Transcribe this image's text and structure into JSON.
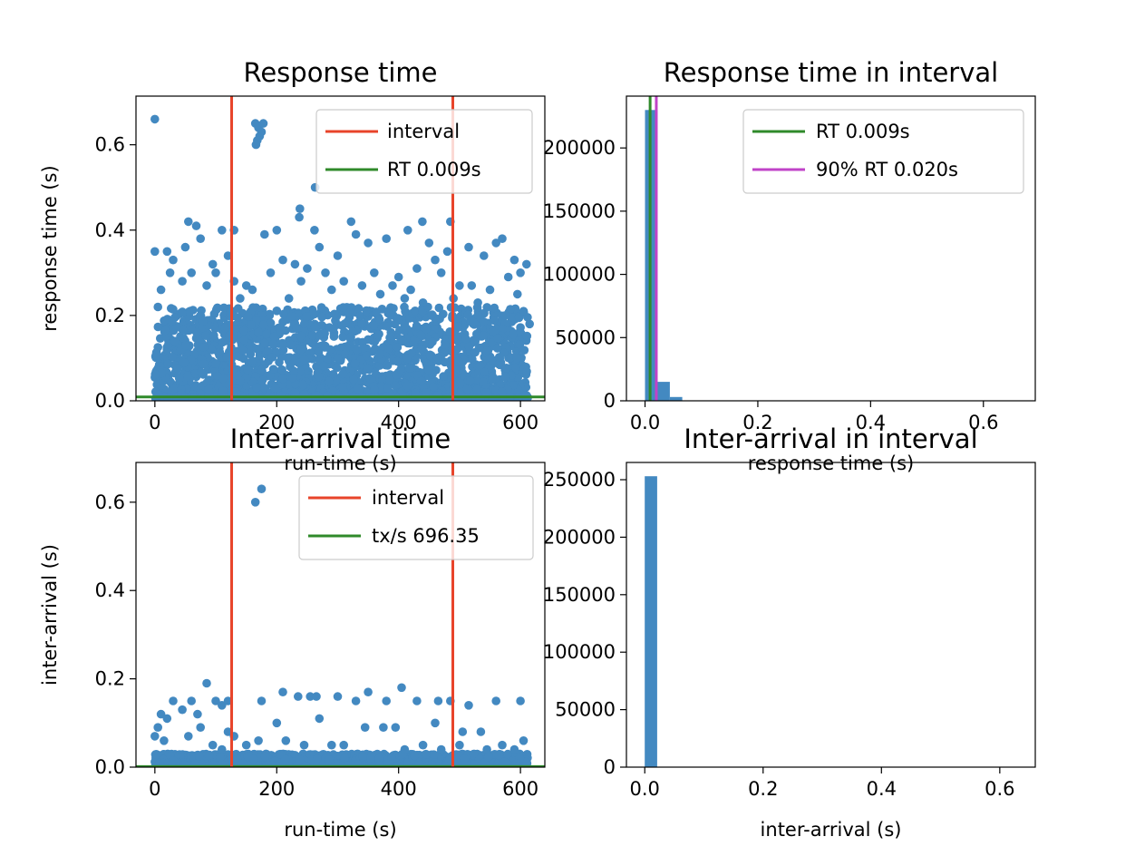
{
  "colors": {
    "points": "#4389c1",
    "interval": "#e8442a",
    "rt": "#2f8a2a",
    "pct90": "#c043c8",
    "axis": "#000000",
    "legend_edge": "#cccccc"
  },
  "chart_data": [
    {
      "id": "rt",
      "type": "scatter",
      "title": "Response time",
      "xlabel": "run-time (s)",
      "ylabel": "response time (s)",
      "xlim": [
        -31,
        640
      ],
      "ylim": [
        0,
        0.714
      ],
      "xticks": [
        0,
        200,
        400,
        600
      ],
      "yticks": [
        0.0,
        0.2,
        0.4,
        0.6
      ],
      "ytick_labels": [
        "0.0",
        "0.2",
        "0.4",
        "0.6"
      ],
      "grid": false,
      "legend": {
        "placement": "upper-right",
        "entries": [
          {
            "label": "interval",
            "color_key": "interval"
          },
          {
            "label": "RT 0.009s",
            "color_key": "rt"
          }
        ]
      },
      "vlines": [
        {
          "x": 126,
          "color_key": "interval"
        },
        {
          "x": 489,
          "color_key": "interval"
        }
      ],
      "hlines": [
        {
          "y": 0.009,
          "color_key": "rt"
        }
      ],
      "points": [
        [
          0,
          0.66
        ],
        [
          165,
          0.65
        ],
        [
          170,
          0.64
        ],
        [
          172,
          0.62
        ],
        [
          168,
          0.61
        ],
        [
          175,
          0.63
        ],
        [
          166,
          0.6
        ],
        [
          178,
          0.65
        ],
        [
          263,
          0.5
        ],
        [
          238,
          0.45
        ],
        [
          237,
          0.43
        ],
        [
          322,
          0.42
        ],
        [
          439,
          0.42
        ],
        [
          485,
          0.42
        ],
        [
          55,
          0.42
        ],
        [
          68,
          0.41
        ],
        [
          262,
          0.4
        ],
        [
          200,
          0.4
        ],
        [
          415,
          0.4
        ],
        [
          180,
          0.39
        ],
        [
          110,
          0.4
        ],
        [
          130,
          0.4
        ],
        [
          380,
          0.38
        ],
        [
          560,
          0.37
        ],
        [
          570,
          0.38
        ],
        [
          515,
          0.36
        ],
        [
          480,
          0.35
        ],
        [
          0,
          0.35
        ],
        [
          20,
          0.35
        ],
        [
          540,
          0.34
        ],
        [
          590,
          0.33
        ],
        [
          610,
          0.32
        ],
        [
          75,
          0.38
        ],
        [
          30,
          0.33
        ],
        [
          450,
          0.37
        ],
        [
          350,
          0.37
        ],
        [
          300,
          0.34
        ],
        [
          270,
          0.36
        ],
        [
          330,
          0.39
        ],
        [
          600,
          0.3
        ],
        [
          580,
          0.29
        ],
        [
          460,
          0.33
        ],
        [
          520,
          0.27
        ],
        [
          500,
          0.27
        ],
        [
          420,
          0.26
        ],
        [
          280,
          0.3
        ],
        [
          100,
          0.3
        ],
        [
          130,
          0.28
        ],
        [
          150,
          0.27
        ],
        [
          60,
          0.3
        ],
        [
          10,
          0.26
        ],
        [
          5,
          0.22
        ],
        [
          50,
          0.36
        ],
        [
          120,
          0.34
        ],
        [
          210,
          0.33
        ],
        [
          230,
          0.32
        ],
        [
          250,
          0.31
        ],
        [
          360,
          0.3
        ],
        [
          400,
          0.29
        ],
        [
          430,
          0.31
        ],
        [
          470,
          0.3
        ],
        [
          550,
          0.26
        ],
        [
          595,
          0.25
        ],
        [
          605,
          0.21
        ],
        [
          25,
          0.3
        ],
        [
          45,
          0.28
        ],
        [
          85,
          0.27
        ],
        [
          95,
          0.32
        ],
        [
          140,
          0.24
        ],
        [
          160,
          0.26
        ],
        [
          190,
          0.3
        ],
        [
          220,
          0.24
        ],
        [
          240,
          0.28
        ],
        [
          290,
          0.26
        ],
        [
          310,
          0.28
        ],
        [
          340,
          0.27
        ],
        [
          370,
          0.25
        ],
        [
          390,
          0.27
        ],
        [
          410,
          0.24
        ],
        [
          440,
          0.23
        ],
        [
          490,
          0.24
        ],
        [
          530,
          0.23
        ],
        [
          575,
          0.2
        ],
        [
          615,
          0.18
        ]
      ],
      "dense_band": {
        "x_from": 0,
        "x_to": 612,
        "y_from": 0.0,
        "y_to": 0.22
      }
    },
    {
      "id": "rt-hist",
      "type": "bar",
      "title": "Response time in interval",
      "xlabel": "response time (s)",
      "ylabel": "",
      "xlim": [
        -0.033,
        0.692
      ],
      "ylim": [
        0,
        241000
      ],
      "xticks": [
        0.0,
        0.2,
        0.4,
        0.6
      ],
      "xtick_labels": [
        "0.0",
        "0.2",
        "0.4",
        "0.6"
      ],
      "yticks": [
        0,
        50000,
        100000,
        150000,
        200000
      ],
      "ytick_labels": [
        "0",
        "50000",
        "100000",
        "150000",
        "200000"
      ],
      "grid": false,
      "legend": {
        "placement": "upper-right",
        "entries": [
          {
            "label": "RT 0.009s",
            "color_key": "rt"
          },
          {
            "label": "90% RT 0.020s",
            "color_key": "pct90"
          }
        ]
      },
      "bin_width": 0.022,
      "bins": [
        {
          "x": 0.0,
          "value": 230000
        },
        {
          "x": 0.022,
          "value": 15000
        },
        {
          "x": 0.044,
          "value": 3000
        }
      ],
      "vlines": [
        {
          "x": 0.009,
          "color_key": "rt"
        },
        {
          "x": 0.02,
          "color_key": "pct90"
        }
      ]
    },
    {
      "id": "ia",
      "type": "scatter",
      "title": "Inter-arrival time",
      "xlabel": "run-time (s)",
      "ylabel": "inter-arrival (s)",
      "xlim": [
        -31,
        640
      ],
      "ylim": [
        0,
        0.69
      ],
      "xticks": [
        0,
        200,
        400,
        600
      ],
      "yticks": [
        0.0,
        0.2,
        0.4,
        0.6
      ],
      "ytick_labels": [
        "0.0",
        "0.2",
        "0.4",
        "0.6"
      ],
      "grid": false,
      "legend": {
        "placement": "upper-right",
        "entries": [
          {
            "label": "interval",
            "color_key": "interval"
          },
          {
            "label": "tx/s 696.35",
            "color_key": "rt"
          }
        ]
      },
      "vlines": [
        {
          "x": 126,
          "color_key": "interval"
        },
        {
          "x": 489,
          "color_key": "interval"
        }
      ],
      "hlines": [
        {
          "y": 0.0014,
          "color_key": "rt"
        }
      ],
      "points": [
        [
          165,
          0.6
        ],
        [
          175,
          0.63
        ],
        [
          85,
          0.19
        ],
        [
          405,
          0.18
        ],
        [
          210,
          0.17
        ],
        [
          300,
          0.16
        ],
        [
          255,
          0.16
        ],
        [
          265,
          0.16
        ],
        [
          350,
          0.17
        ],
        [
          235,
          0.16
        ],
        [
          30,
          0.15
        ],
        [
          60,
          0.15
        ],
        [
          100,
          0.15
        ],
        [
          110,
          0.14
        ],
        [
          120,
          0.15
        ],
        [
          175,
          0.15
        ],
        [
          330,
          0.15
        ],
        [
          380,
          0.15
        ],
        [
          430,
          0.15
        ],
        [
          465,
          0.15
        ],
        [
          485,
          0.15
        ],
        [
          515,
          0.14
        ],
        [
          560,
          0.15
        ],
        [
          600,
          0.15
        ],
        [
          10,
          0.12
        ],
        [
          20,
          0.11
        ],
        [
          45,
          0.13
        ],
        [
          70,
          0.12
        ],
        [
          535,
          0.08
        ],
        [
          345,
          0.09
        ],
        [
          270,
          0.11
        ],
        [
          505,
          0.08
        ],
        [
          375,
          0.09
        ],
        [
          395,
          0.09
        ],
        [
          460,
          0.1
        ],
        [
          200,
          0.1
        ],
        [
          5,
          0.09
        ],
        [
          0,
          0.07
        ],
        [
          15,
          0.06
        ],
        [
          55,
          0.07
        ],
        [
          75,
          0.09
        ],
        [
          95,
          0.05
        ],
        [
          130,
          0.07
        ],
        [
          150,
          0.05
        ],
        [
          170,
          0.06
        ],
        [
          215,
          0.06
        ],
        [
          245,
          0.05
        ],
        [
          290,
          0.05
        ],
        [
          310,
          0.05
        ],
        [
          410,
          0.04
        ],
        [
          440,
          0.05
        ],
        [
          470,
          0.04
        ],
        [
          500,
          0.05
        ],
        [
          545,
          0.04
        ],
        [
          570,
          0.05
        ],
        [
          590,
          0.04
        ],
        [
          605,
          0.06
        ],
        [
          120,
          0.08
        ],
        [
          110,
          0.04
        ]
      ],
      "dense_band": {
        "x_from": 0,
        "x_to": 612,
        "y_from": 0.0,
        "y_to": 0.03
      }
    },
    {
      "id": "ia-hist",
      "type": "bar",
      "title": "Inter-arrival in interval",
      "xlabel": "inter-arrival (s)",
      "ylabel": "",
      "xlim": [
        -0.031,
        0.66
      ],
      "ylim": [
        0,
        265000
      ],
      "xticks": [
        0.0,
        0.2,
        0.4,
        0.6
      ],
      "xtick_labels": [
        "0.0",
        "0.2",
        "0.4",
        "0.6"
      ],
      "yticks": [
        0,
        50000,
        100000,
        150000,
        200000,
        250000
      ],
      "ytick_labels": [
        "0",
        "50000",
        "100000",
        "150000",
        "200000",
        "250000"
      ],
      "grid": false,
      "bin_width": 0.021,
      "bins": [
        {
          "x": 0.0,
          "value": 253000
        }
      ]
    }
  ]
}
